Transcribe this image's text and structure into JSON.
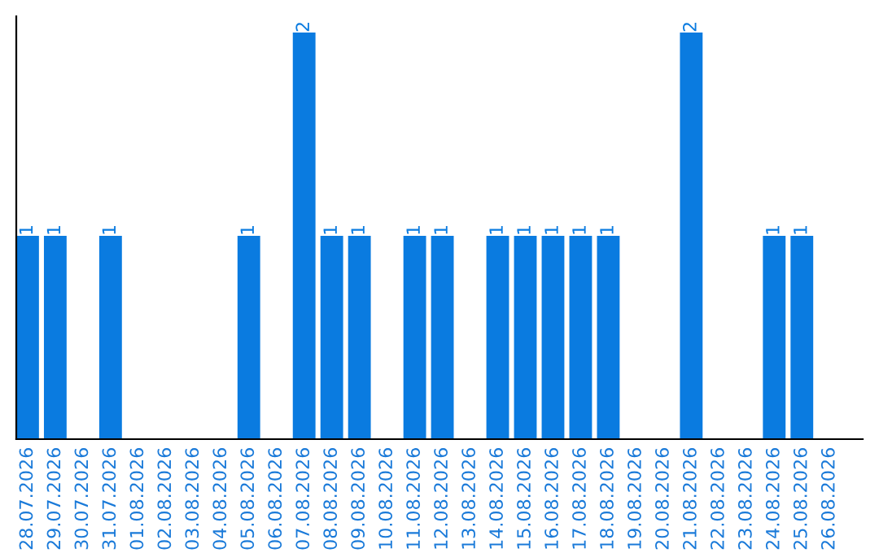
{
  "chart_data": {
    "type": "bar",
    "categories": [
      "28.07.2026",
      "29.07.2026",
      "30.07.2026",
      "31.07.2026",
      "01.08.2026",
      "02.08.2026",
      "03.08.2026",
      "04.08.2026",
      "05.08.2026",
      "06.08.2026",
      "07.08.2026",
      "08.08.2026",
      "09.08.2026",
      "10.08.2026",
      "11.08.2026",
      "12.08.2026",
      "13.08.2026",
      "14.08.2026",
      "15.08.2026",
      "16.08.2026",
      "17.08.2026",
      "18.08.2026",
      "19.08.2026",
      "20.08.2026",
      "21.08.2026",
      "22.08.2026",
      "23.08.2026",
      "24.08.2026",
      "25.08.2026",
      "26.08.2026"
    ],
    "values": [
      1,
      1,
      0,
      1,
      0,
      0,
      0,
      0,
      1,
      0,
      2,
      1,
      1,
      0,
      1,
      1,
      0,
      1,
      1,
      1,
      1,
      1,
      0,
      0,
      2,
      0,
      0,
      1,
      1,
      0
    ],
    "value_labels": [
      "1",
      "1",
      null,
      "1",
      null,
      null,
      null,
      null,
      "1",
      null,
      "2",
      "1",
      "1",
      null,
      "1",
      "1",
      null,
      "1",
      "1",
      "1",
      "1",
      "1",
      null,
      null,
      "2",
      null,
      null,
      "1",
      "1",
      null
    ],
    "color": "#0a7be0",
    "grid": false,
    "legend": false,
    "tick_labels": "x"
  }
}
